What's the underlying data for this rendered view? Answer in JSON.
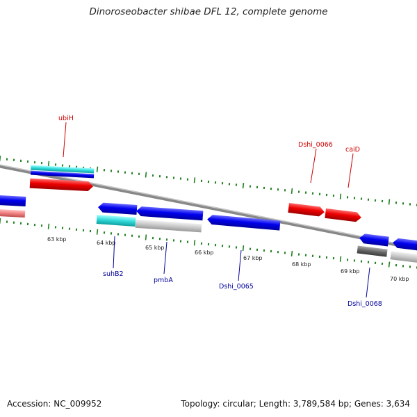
{
  "title": "Dinoroseobacter shibae DFL 12, complete genome",
  "footer": {
    "accession": "Accession: NC_009952",
    "summary": "Topology: circular; Length: 3,789,584 bp; Genes: 3,634"
  },
  "colors": {
    "forward_cds": "#e00000",
    "reverse_cds": "#0000e0",
    "rna": "#30d0d0",
    "backbone": "#888888",
    "tick": "#208020",
    "label_forward": "#cc0000",
    "label_reverse": "#000099"
  },
  "scale_labels": [
    "63 kbp",
    "64 kbp",
    "65 kbp",
    "66 kbp",
    "67 kbp",
    "68 kbp",
    "69 kbp",
    "70 kbp"
  ],
  "gene_labels": [
    {
      "name": "ubiH",
      "strand": "forward"
    },
    {
      "name": "Dshi_0066",
      "strand": "forward"
    },
    {
      "name": "caiD",
      "strand": "forward"
    },
    {
      "name": "suhB2",
      "strand": "reverse"
    },
    {
      "name": "pmbA",
      "strand": "reverse"
    },
    {
      "name": "Dshi_0065",
      "strand": "reverse"
    },
    {
      "name": "Dshi_0068",
      "strand": "reverse"
    }
  ]
}
